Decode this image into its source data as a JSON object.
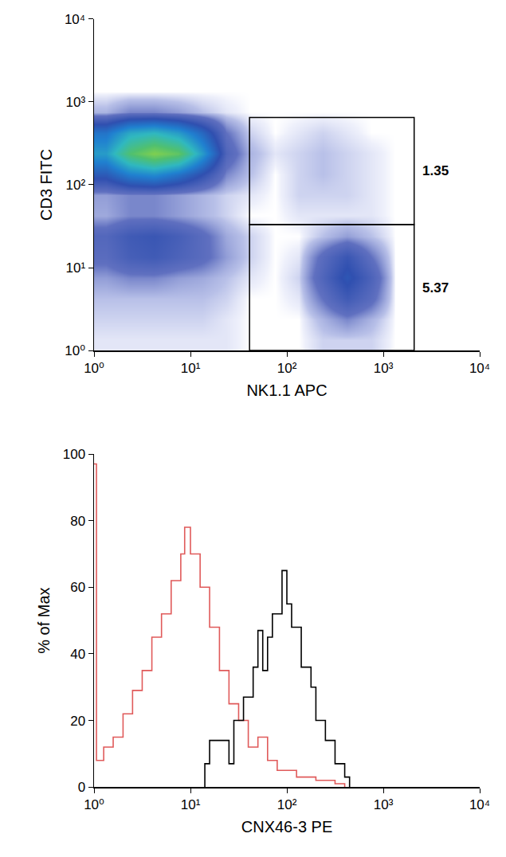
{
  "chart_data": [
    {
      "type": "density",
      "x_label": "NK1.1 APC",
      "y_label": "CD3 FITC",
      "log": true,
      "xlim": [
        1,
        10000
      ],
      "ylim": [
        1,
        10000
      ],
      "xticks": [
        {
          "value": 1,
          "label": "10⁰"
        },
        {
          "value": 10,
          "label": "10¹"
        },
        {
          "value": 100,
          "label": "10²"
        },
        {
          "value": 1000,
          "label": "10³"
        },
        {
          "value": 10000,
          "label": "10⁴"
        }
      ],
      "yticks": [
        {
          "value": 1,
          "label": "10⁰"
        },
        {
          "value": 10,
          "label": "10¹"
        },
        {
          "value": 100,
          "label": "10²"
        },
        {
          "value": 1000,
          "label": "10³"
        },
        {
          "value": 10000,
          "label": "10⁴"
        }
      ],
      "x_bins": [
        1,
        1.78,
        3.16,
        5.62,
        10,
        17.8,
        31.6,
        56.2,
        100,
        178,
        316,
        562,
        1000,
        1780,
        3160,
        5620,
        10000
      ],
      "y_bins": [
        1,
        1.78,
        3.16,
        5.62,
        10,
        17.8,
        31.6,
        56.2,
        100,
        178,
        316,
        562,
        1000,
        1780,
        3160,
        5620,
        10000
      ],
      "cells": [
        [
          1,
          1,
          1,
          1,
          1,
          1,
          0,
          0,
          0,
          2,
          2,
          2,
          0,
          0,
          0,
          0
        ],
        [
          2,
          2,
          2,
          2,
          2,
          1,
          0,
          0,
          0,
          4,
          8,
          4,
          0,
          0,
          0,
          0
        ],
        [
          3,
          3,
          3,
          3,
          3,
          2,
          0,
          0,
          1,
          10,
          20,
          12,
          0,
          0,
          0,
          0
        ],
        [
          6,
          8,
          8,
          6,
          5,
          3,
          1,
          0,
          2,
          15,
          28,
          16,
          0,
          0,
          0,
          0
        ],
        [
          12,
          18,
          20,
          16,
          12,
          6,
          2,
          0,
          1,
          12,
          22,
          10,
          0,
          0,
          0,
          0
        ],
        [
          14,
          20,
          22,
          18,
          12,
          5,
          2,
          0,
          0,
          3,
          6,
          3,
          0,
          0,
          0,
          0
        ],
        [
          5,
          8,
          8,
          6,
          4,
          2,
          0,
          0,
          1,
          1,
          1,
          1,
          0,
          0,
          0,
          0
        ],
        [
          6,
          8,
          8,
          6,
          4,
          2,
          1,
          0,
          2,
          2,
          2,
          1,
          0,
          0,
          0,
          0
        ],
        [
          30,
          45,
          50,
          40,
          25,
          8,
          3,
          0,
          2,
          3,
          2,
          1,
          0,
          0,
          0,
          0
        ],
        [
          55,
          85,
          100,
          90,
          55,
          15,
          4,
          1,
          2,
          3,
          2,
          1,
          0,
          0,
          0,
          0
        ],
        [
          40,
          60,
          65,
          55,
          35,
          10,
          2,
          0,
          1,
          2,
          1,
          0,
          0,
          0,
          0,
          0
        ],
        [
          4,
          8,
          8,
          6,
          3,
          1,
          0,
          0,
          0,
          0,
          0,
          0,
          0,
          0,
          0,
          0
        ],
        [
          0,
          0,
          0,
          0,
          0,
          0,
          0,
          0,
          0,
          0,
          0,
          0,
          0,
          0,
          0,
          0
        ],
        [
          0,
          0,
          0,
          0,
          0,
          0,
          0,
          0,
          0,
          0,
          0,
          0,
          0,
          0,
          0,
          0
        ],
        [
          0,
          0,
          0,
          0,
          0,
          0,
          0,
          0,
          0,
          0,
          0,
          0,
          0,
          0,
          0,
          0
        ],
        [
          0,
          0,
          0,
          0,
          0,
          0,
          0,
          0,
          0,
          0,
          0,
          0,
          0,
          0,
          0,
          0
        ]
      ],
      "gates": [
        {
          "x": [
            41,
            2090
          ],
          "y": [
            33,
            650
          ],
          "label": "1.35"
        },
        {
          "x": [
            41,
            2090
          ],
          "y": [
            1,
            33
          ],
          "label": "5.37"
        }
      ]
    },
    {
      "type": "line",
      "x_label": "CNX46-3 PE",
      "y_label": "% of Max",
      "log": "x",
      "xlim": [
        1,
        10000
      ],
      "ylim": [
        0,
        100
      ],
      "xticks": [
        {
          "value": 1,
          "label": "10⁰"
        },
        {
          "value": 10,
          "label": "10¹"
        },
        {
          "value": 100,
          "label": "10²"
        },
        {
          "value": 1000,
          "label": "10³"
        },
        {
          "value": 10000,
          "label": "10⁴"
        }
      ],
      "yticks": [
        0,
        20,
        40,
        60,
        80,
        100
      ],
      "line_style": "step",
      "series": [
        {
          "color": "#e05a5a",
          "x": [
            1,
            1.06,
            1.26,
            1.58,
            2,
            2.51,
            3.16,
            3.98,
            5.01,
            6.31,
            7.94,
            8.71,
            10,
            12.6,
            15.8,
            20,
            25.1,
            31.6,
            39.8,
            50.1,
            63.1,
            79.4,
            100,
            126,
            158,
            200,
            251,
            316,
            398
          ],
          "values": [
            97,
            8,
            12,
            15,
            22,
            29,
            35,
            45,
            52,
            62,
            70,
            78,
            70,
            60,
            48,
            35,
            25,
            20,
            12,
            15,
            8,
            5,
            5,
            3,
            3,
            2,
            2,
            1,
            0
          ]
        },
        {
          "color": "#000000",
          "x": [
            14.1,
            14.1,
            15.8,
            20,
            25.1,
            28.2,
            35.5,
            44.7,
            50.1,
            56.2,
            63.1,
            70.8,
            89.1,
            100,
            112,
            141,
            178,
            200,
            251,
            316,
            398,
            447
          ],
          "values": [
            0,
            7,
            14,
            14,
            7,
            20,
            27,
            36,
            47,
            35,
            45,
            52,
            65,
            55,
            48,
            36,
            30,
            20,
            14,
            7,
            3,
            0
          ]
        }
      ]
    }
  ]
}
